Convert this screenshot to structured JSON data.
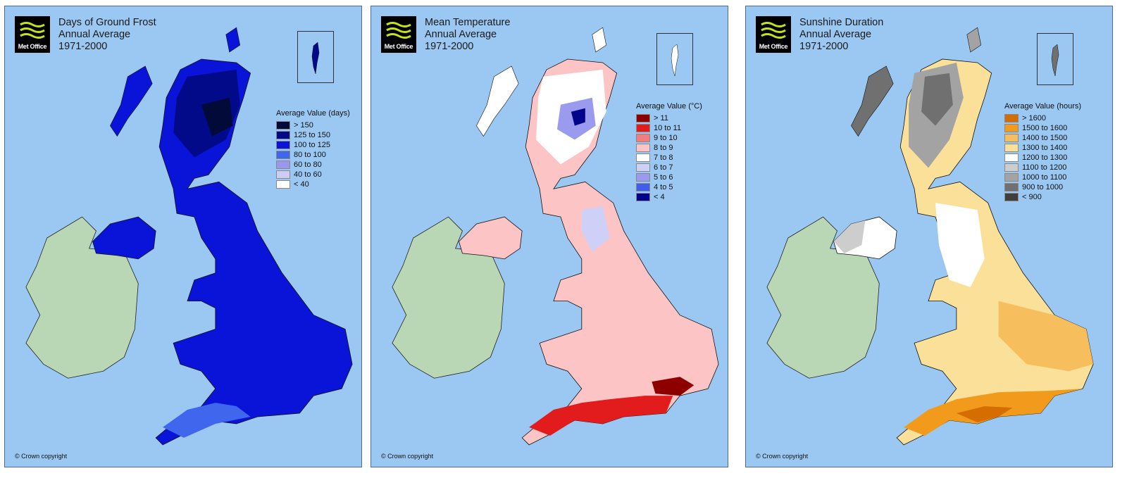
{
  "panels": [
    {
      "id": "frost",
      "brand": "Met Office",
      "title_lines": [
        "Days of Ground Frost",
        "Annual Average",
        "1971-2000"
      ],
      "legend_title": "Average Value (days)",
      "legend": [
        {
          "label": "> 150",
          "color": "#020a3a"
        },
        {
          "label": "125 to 150",
          "color": "#030a8a"
        },
        {
          "label": "100 to 125",
          "color": "#0a14d8"
        },
        {
          "label": "80 to 100",
          "color": "#3f66ec"
        },
        {
          "label": "60 to 80",
          "color": "#9a98ee"
        },
        {
          "label": "40 to 60",
          "color": "#ccccf5"
        },
        {
          "label": "< 40",
          "color": "#ffffff"
        }
      ],
      "ireland_color": "#b9d7b5",
      "copyright": "© Crown copyright"
    },
    {
      "id": "temp",
      "brand": "Met Office",
      "title_lines": [
        "Mean Temperature",
        "Annual Average",
        "1971-2000"
      ],
      "legend_title": "Average Value (°C)",
      "legend": [
        {
          "label": "> 11",
          "color": "#8e0000"
        },
        {
          "label": "10 to 11",
          "color": "#e21c1c"
        },
        {
          "label": "9 to 10",
          "color": "#f57c7c"
        },
        {
          "label": "8 to 9",
          "color": "#fcc4c4"
        },
        {
          "label": "7 to 8",
          "color": "#ffffff"
        },
        {
          "label": "6 to 7",
          "color": "#cfd0f8"
        },
        {
          "label": "5 to 6",
          "color": "#9a9bee"
        },
        {
          "label": "4 to 5",
          "color": "#3f5fea"
        },
        {
          "label": "< 4",
          "color": "#02058c"
        }
      ],
      "ireland_color": "#b9d7b5",
      "copyright": "© Crown copyright"
    },
    {
      "id": "sun",
      "brand": "Met Office",
      "title_lines": [
        "Sunshine Duration",
        "Annual Average",
        "1971-2000"
      ],
      "legend_title": "Average Value (hours)",
      "legend": [
        {
          "label": "> 1600",
          "color": "#d56d00"
        },
        {
          "label": "1500 to 1600",
          "color": "#f29a1b"
        },
        {
          "label": "1400 to 1500",
          "color": "#f6be5c"
        },
        {
          "label": "1300 to 1400",
          "color": "#fbe09a"
        },
        {
          "label": "1200 to 1300",
          "color": "#ffffff"
        },
        {
          "label": "1100 to 1200",
          "color": "#cdcdcd"
        },
        {
          "label": "1000 to 1100",
          "color": "#a3a3a3"
        },
        {
          "label": "900 to 1000",
          "color": "#707070"
        },
        {
          "label": "< 900",
          "color": "#3f3f3f"
        }
      ],
      "ireland_color": "#b9d7b5",
      "copyright": "© Crown copyright"
    }
  ]
}
